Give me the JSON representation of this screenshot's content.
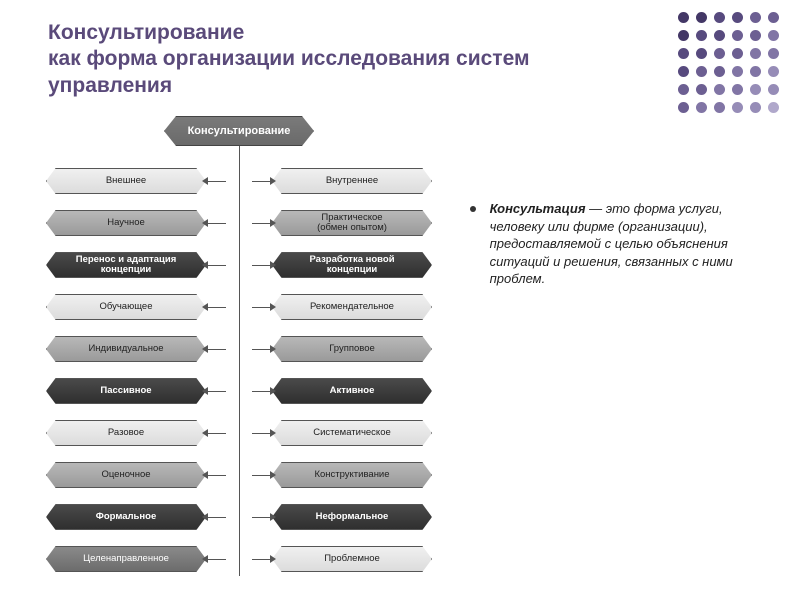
{
  "title_lines": [
    "Консультирование",
    "как форма организации исследования систем",
    "управления"
  ],
  "title_color": "#5a4a7a",
  "dot_grid": {
    "rows": 6,
    "cols": 6,
    "colors": [
      "#433766",
      "#574a7e",
      "#6c5f92",
      "#8175a5",
      "#968cb7",
      "#b0a8cb"
    ]
  },
  "root_label": "Консультирование",
  "rows": [
    {
      "left": {
        "t": "Внешнее",
        "s": "light"
      },
      "right": {
        "t": "Внутреннее",
        "s": "light"
      }
    },
    {
      "left": {
        "t": "Научное",
        "s": "med"
      },
      "right": {
        "t": "Практическое\\n(обмен опытом)",
        "s": "med"
      }
    },
    {
      "left": {
        "t": "Перенос и адаптация\\nконцепции",
        "s": "dark"
      },
      "right": {
        "t": "Разработка новой\\nконцепции",
        "s": "dark"
      }
    },
    {
      "left": {
        "t": "Обучающее",
        "s": "light"
      },
      "right": {
        "t": "Рекомендательное",
        "s": "light"
      }
    },
    {
      "left": {
        "t": "Индивидуальное",
        "s": "med"
      },
      "right": {
        "t": "Групповое",
        "s": "med"
      }
    },
    {
      "left": {
        "t": "Пассивное",
        "s": "dark"
      },
      "right": {
        "t": "Активное",
        "s": "dark"
      }
    },
    {
      "left": {
        "t": "Разовое",
        "s": "light"
      },
      "right": {
        "t": "Систематическое",
        "s": "light"
      }
    },
    {
      "left": {
        "t": "Оценочное",
        "s": "med"
      },
      "right": {
        "t": "Конструктивание",
        "s": "med"
      }
    },
    {
      "left": {
        "t": "Формальное",
        "s": "dark"
      },
      "right": {
        "t": "Неформальное",
        "s": "dark"
      }
    },
    {
      "left": {
        "t": "Целенаправленное",
        "s": "mid"
      },
      "right": {
        "t": "Проблемное",
        "s": "light"
      }
    }
  ],
  "row_top_start": 52,
  "row_gap": 42,
  "definition_bold": "Консультация",
  "definition_rest": " — это форма услуги, человеку или фирме (организации), предоставляемой с целью объяснения ситуаций и решения, связанных с ними проблем."
}
